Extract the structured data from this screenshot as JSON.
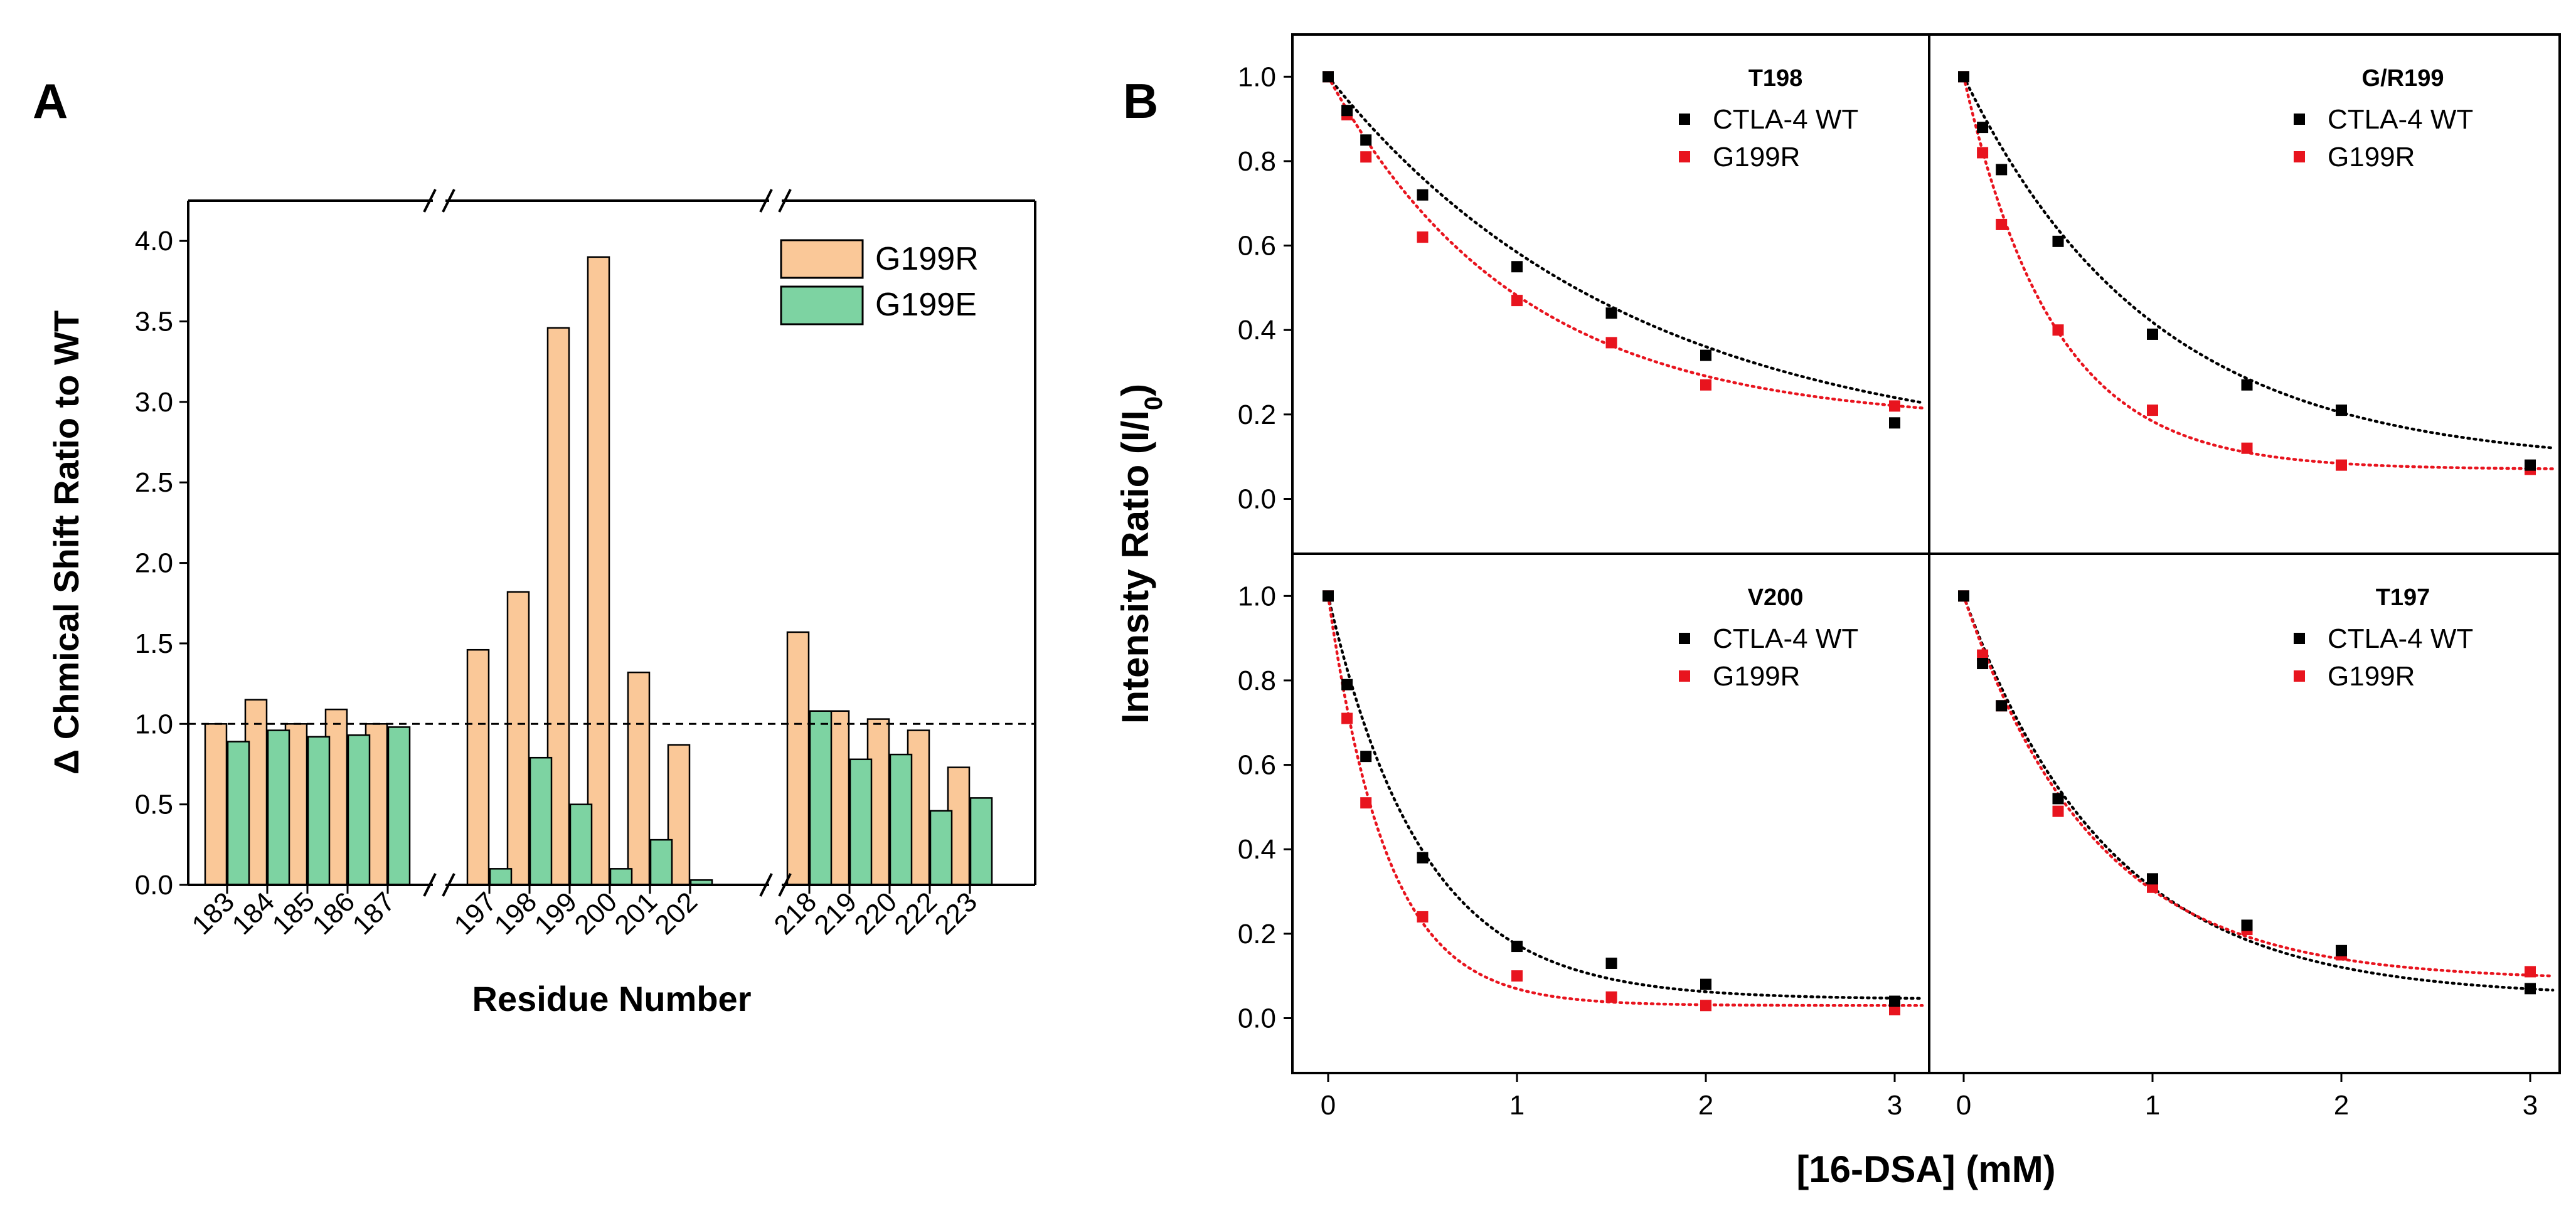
{
  "chart_data": [
    {
      "panel": "A",
      "type": "bar",
      "title": "",
      "xlabel": "Residue Number",
      "ylabel": "Δ Chmical Shift Ratio to WT",
      "ylim": [
        0,
        4.25
      ],
      "yticks": [
        "0.0",
        "0.5",
        "1.0",
        "1.5",
        "2.0",
        "2.5",
        "3.0",
        "3.5",
        "4.0"
      ],
      "reference_line": 1.0,
      "axis_break_marks": [
        "//",
        "//"
      ],
      "legend_position": "top-right",
      "groups": [
        [
          "183",
          "184",
          "185",
          "186",
          "187"
        ],
        [
          "197",
          "198",
          "199",
          "200",
          "201",
          "202"
        ],
        [
          "218",
          "219",
          "220",
          "222",
          "223"
        ]
      ],
      "categories": [
        "183",
        "184",
        "185",
        "186",
        "187",
        "197",
        "198",
        "199",
        "200",
        "201",
        "202",
        "218",
        "219",
        "220",
        "222",
        "223"
      ],
      "series": [
        {
          "name": "G199R",
          "color": "#fac898",
          "values": [
            1.0,
            1.15,
            1.0,
            1.09,
            1.0,
            1.46,
            1.82,
            3.46,
            3.9,
            1.32,
            0.87,
            1.57,
            1.08,
            1.03,
            0.96,
            0.73
          ]
        },
        {
          "name": "G199E",
          "color": "#7dd3a2",
          "values": [
            0.89,
            0.96,
            0.92,
            0.93,
            0.98,
            0.1,
            0.79,
            0.5,
            0.1,
            0.28,
            0.03,
            1.08,
            0.78,
            0.81,
            0.46,
            0.54
          ]
        }
      ]
    },
    {
      "panel": "B",
      "type": "scatter",
      "xlabel": "[16-DSA] (mM)",
      "ylabel": "Intensity Ratio (I/I0)",
      "ylabel_main": "Intensity Ratio (I/I",
      "ylabel_sub": "0",
      "ylabel_end": ")",
      "xlim": [
        -0.25,
        3.2
      ],
      "ylim": [
        -0.13,
        1.1
      ],
      "xticks": [
        "0",
        "1",
        "2",
        "3"
      ],
      "yticks": [
        "0.0",
        "0.2",
        "0.4",
        "0.6",
        "0.8",
        "1.0"
      ],
      "series_colors": {
        "CTLA-4 WT": "#000000",
        "G199R": "#e8141e"
      },
      "subplots": [
        {
          "title": "T198",
          "series": [
            {
              "name": "CTLA-4 WT",
              "x": [
                0,
                0.1,
                0.2,
                0.5,
                1.0,
                1.5,
                2.0,
                3.0
              ],
              "y": [
                1.0,
                0.92,
                0.85,
                0.72,
                0.55,
                0.44,
                0.34,
                0.18
              ]
            },
            {
              "name": "G199R",
              "x": [
                0,
                0.1,
                0.2,
                0.5,
                1.0,
                1.5,
                2.0,
                3.0
              ],
              "y": [
                1.0,
                0.91,
                0.81,
                0.62,
                0.47,
                0.37,
                0.27,
                0.22
              ]
            }
          ],
          "fits": [
            {
              "name": "CTLA-4 WT",
              "y0": 0.1,
              "A": 0.9,
              "k": 0.62
            },
            {
              "name": "G199R",
              "y0": 0.18,
              "A": 0.82,
              "k": 1.0
            }
          ]
        },
        {
          "title": "G/R199",
          "series": [
            {
              "name": "CTLA-4 WT",
              "x": [
                0,
                0.1,
                0.2,
                0.5,
                1.0,
                1.5,
                2.0,
                3.0
              ],
              "y": [
                1.0,
                0.88,
                0.78,
                0.61,
                0.39,
                0.27,
                0.21,
                0.08
              ]
            },
            {
              "name": "G199R",
              "x": [
                0,
                0.1,
                0.2,
                0.5,
                1.0,
                1.5,
                2.0,
                3.0
              ],
              "y": [
                1.0,
                0.82,
                0.65,
                0.4,
                0.21,
                0.12,
                0.08,
                0.07
              ]
            }
          ],
          "fits": [
            {
              "name": "CTLA-4 WT",
              "y0": 0.08,
              "A": 0.92,
              "k": 1.0
            },
            {
              "name": "G199R",
              "y0": 0.07,
              "A": 0.93,
              "k": 2.1
            }
          ]
        },
        {
          "title": "V200",
          "series": [
            {
              "name": "CTLA-4 WT",
              "x": [
                0,
                0.1,
                0.2,
                0.5,
                1.0,
                1.5,
                2.0,
                3.0
              ],
              "y": [
                1.0,
                0.79,
                0.62,
                0.38,
                0.17,
                0.13,
                0.08,
                0.04
              ]
            },
            {
              "name": "G199R",
              "x": [
                0,
                0.1,
                0.2,
                0.5,
                1.0,
                1.5,
                2.0,
                3.0
              ],
              "y": [
                1.0,
                0.71,
                0.51,
                0.24,
                0.1,
                0.05,
                0.03,
                0.02
              ]
            }
          ],
          "fits": [
            {
              "name": "CTLA-4 WT",
              "y0": 0.045,
              "A": 0.955,
              "k": 2.0
            },
            {
              "name": "G199R",
              "y0": 0.03,
              "A": 0.97,
              "k": 3.2
            }
          ]
        },
        {
          "title": "T197",
          "series": [
            {
              "name": "CTLA-4 WT",
              "x": [
                0,
                0.1,
                0.2,
                0.5,
                1.0,
                1.5,
                2.0,
                3.0
              ],
              "y": [
                1.0,
                0.84,
                0.74,
                0.52,
                0.33,
                0.22,
                0.16,
                0.07
              ]
            },
            {
              "name": "G199R",
              "x": [
                0,
                0.1,
                0.2,
                0.5,
                1.0,
                1.5,
                2.0,
                3.0
              ],
              "y": [
                1.0,
                0.86,
                0.74,
                0.49,
                0.31,
                0.21,
                0.15,
                0.11
              ]
            }
          ],
          "fits": [
            {
              "name": "CTLA-4 WT",
              "y0": 0.05,
              "A": 0.95,
              "k": 1.3
            },
            {
              "name": "G199R",
              "y0": 0.09,
              "A": 0.91,
              "k": 1.45
            }
          ]
        }
      ]
    }
  ]
}
